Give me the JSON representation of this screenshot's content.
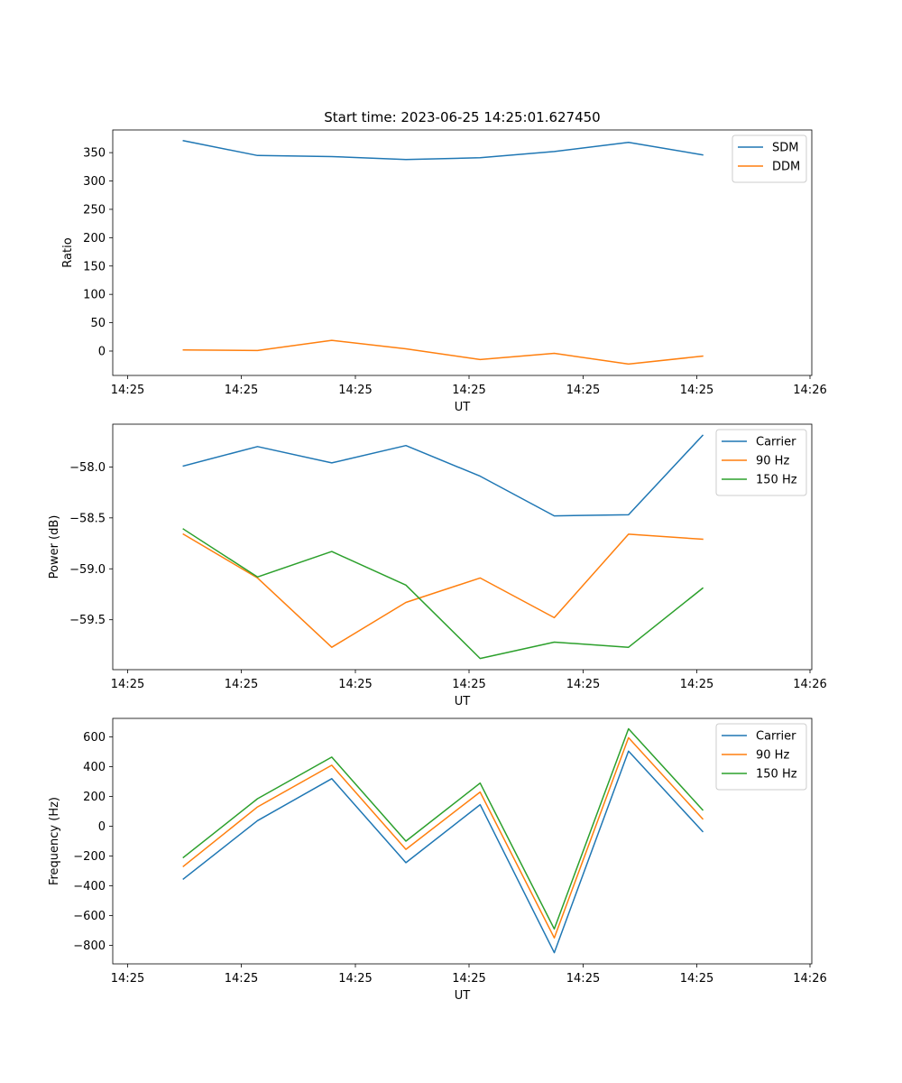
{
  "chart_data": [
    {
      "type": "line",
      "title": "Start time: 2023-06-25 14:25:01.627450",
      "xlabel": "UT",
      "ylabel": "Ratio",
      "x_tick_labels": [
        "14:25",
        "14:25",
        "14:25",
        "14:25",
        "14:25",
        "14:25",
        "14:26"
      ],
      "ylim": [
        -43,
        390
      ],
      "y_ticks": [
        0,
        50,
        100,
        150,
        200,
        250,
        300,
        350
      ],
      "legend": "top-right",
      "grid": false,
      "series": [
        {
          "name": "SDM",
          "color": "#1f77b4",
          "values": [
            371,
            345,
            343,
            338,
            341,
            352,
            368,
            346
          ]
        },
        {
          "name": "DDM",
          "color": "#ff7f0e",
          "values": [
            2,
            1,
            19,
            4,
            -15,
            -4,
            -23,
            -9
          ]
        }
      ]
    },
    {
      "type": "line",
      "title": "",
      "xlabel": "UT",
      "ylabel": "Power (dB)",
      "x_tick_labels": [
        "14:25",
        "14:25",
        "14:25",
        "14:25",
        "14:25",
        "14:25",
        "14:26"
      ],
      "ylim": [
        -59.99,
        -57.58
      ],
      "y_ticks": [
        -59.5,
        -59.0,
        -58.5,
        -58.0
      ],
      "y_tick_labels": [
        "−59.5",
        "−59.0",
        "−58.5",
        "−58.0"
      ],
      "legend": "top-right",
      "grid": false,
      "series": [
        {
          "name": "Carrier",
          "color": "#1f77b4",
          "values": [
            -57.99,
            -57.8,
            -57.96,
            -57.79,
            -58.09,
            -58.48,
            -58.47,
            -57.69
          ]
        },
        {
          "name": "90 Hz",
          "color": "#ff7f0e",
          "values": [
            -58.66,
            -59.09,
            -59.77,
            -59.33,
            -59.09,
            -59.48,
            -58.66,
            -58.71
          ]
        },
        {
          "name": "150 Hz",
          "color": "#2ca02c",
          "values": [
            -58.61,
            -59.08,
            -58.83,
            -59.16,
            -59.88,
            -59.72,
            -59.77,
            -59.19
          ]
        }
      ]
    },
    {
      "type": "line",
      "title": "",
      "xlabel": "UT",
      "ylabel": "Frequency (Hz)",
      "x_tick_labels": [
        "14:25",
        "14:25",
        "14:25",
        "14:25",
        "14:25",
        "14:25",
        "14:26"
      ],
      "ylim": [
        -925,
        725
      ],
      "y_ticks": [
        -800,
        -600,
        -400,
        -200,
        0,
        200,
        400,
        600
      ],
      "y_tick_labels": [
        "−800",
        "−600",
        "−400",
        "−200",
        "0",
        "200",
        "400",
        "600"
      ],
      "legend": "top-right",
      "grid": false,
      "series": [
        {
          "name": "Carrier",
          "color": "#1f77b4",
          "values": [
            -355,
            38,
            320,
            -245,
            145,
            -850,
            505,
            -35
          ]
        },
        {
          "name": "90 Hz",
          "color": "#ff7f0e",
          "values": [
            -270,
            130,
            410,
            -155,
            230,
            -750,
            595,
            50
          ]
        },
        {
          "name": "150 Hz",
          "color": "#2ca02c",
          "values": [
            -210,
            185,
            465,
            -100,
            290,
            -690,
            655,
            110
          ]
        }
      ]
    }
  ]
}
